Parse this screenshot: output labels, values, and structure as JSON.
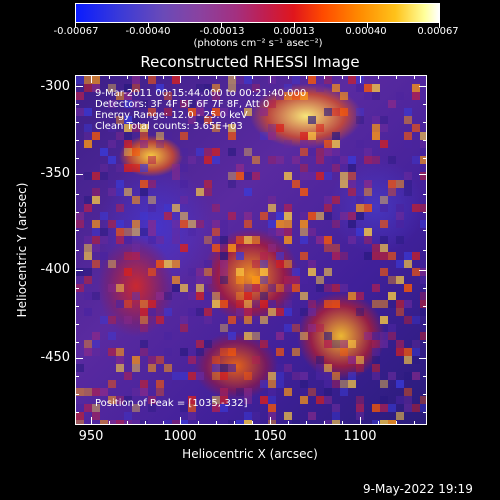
{
  "colorbar": {
    "tick_labels": [
      "-0.00067",
      "-0.00040",
      "-0.00013",
      "0.00013",
      "0.00040",
      "0.00067"
    ],
    "units_label": "(photons cm⁻² s⁻¹ asec⁻²)",
    "colors": [
      "#0a1cff",
      "#8a42a0",
      "#e0161c",
      "#ff8a00",
      "#ffff9a",
      "#ffffff"
    ]
  },
  "title": "Reconstructed RHESSI Image",
  "info": {
    "line1": "9-Mar-2011 00:15:44.000 to 00:21:40.000",
    "line2": "Detectors: 3F 4F 5F 6F 7F 8F, Att 0",
    "line3": "Energy Range: 12.0 - 25.0 keV",
    "line4": "Clean    Total counts: 3.65E+03"
  },
  "peak_label": "Position of Peak = [1035,-332]",
  "axes": {
    "x_title": "Heliocentric X (arcsec)",
    "y_title": "Heliocentric Y (arcsec)",
    "x_ticks": [
      "950",
      "1000",
      "1050",
      "1100"
    ],
    "y_ticks": [
      "-300",
      "-350",
      "-400",
      "-450"
    ]
  },
  "footer": {
    "date": "9-May-2022 19:19"
  }
}
